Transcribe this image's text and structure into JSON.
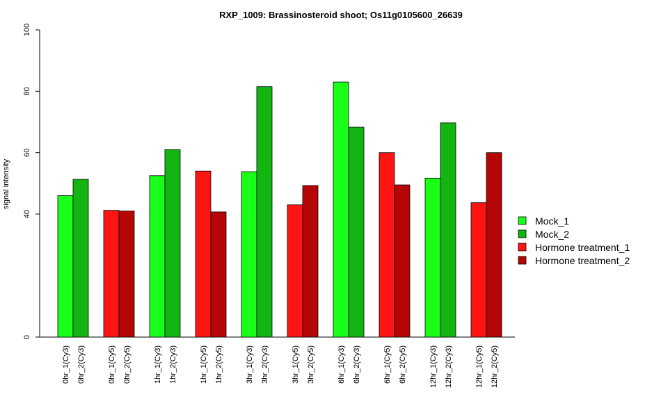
{
  "chart_data": {
    "type": "bar",
    "title": "RXP_1009: Brassinosteroid shoot; Os11g0105600_26639",
    "ylabel": "signal intensity",
    "yticks": [
      0,
      40,
      60,
      80,
      100
    ],
    "ylim": [
      0,
      100
    ],
    "y_axis_break": true,
    "legend_position": "right",
    "legend": [
      {
        "name": "Mock_1",
        "color": "#19FF19"
      },
      {
        "name": "Mock_2",
        "color": "#13B513"
      },
      {
        "name": "Hormone treatment_1",
        "color": "#FF1414"
      },
      {
        "name": "Hormone treatment_2",
        "color": "#B50606"
      }
    ],
    "categories": [
      "0hr_1(Cy3)",
      "0hr_2(Cy3)",
      "0hr_1(Cy5)",
      "0hr_2(Cy5)",
      "1hr_1(Cy3)",
      "1hr_2(Cy3)",
      "1hr_1(Cy5)",
      "1hr_2(Cy5)",
      "3hr_1(Cy3)",
      "3hr_2(Cy3)",
      "3hr_1(Cy5)",
      "3hr_2(Cy5)",
      "6hr_1(Cy3)",
      "6hr_2(Cy3)",
      "6hr_1(Cy5)",
      "6hr_2(Cy5)",
      "12hr_1(Cy3)",
      "12hr_2(Cy3)",
      "12hr_1(Cy5)",
      "12hr_2(Cy5)"
    ],
    "series_index": [
      0,
      1,
      2,
      3,
      0,
      1,
      2,
      3,
      0,
      1,
      2,
      3,
      0,
      1,
      2,
      3,
      0,
      1,
      2,
      3
    ],
    "values": [
      46,
      51.3,
      41.2,
      41,
      52.5,
      61,
      54,
      40.7,
      53.8,
      81.5,
      43,
      49.3,
      83,
      68.3,
      60,
      49.5,
      51.7,
      69.7,
      43.7,
      60
    ]
  }
}
